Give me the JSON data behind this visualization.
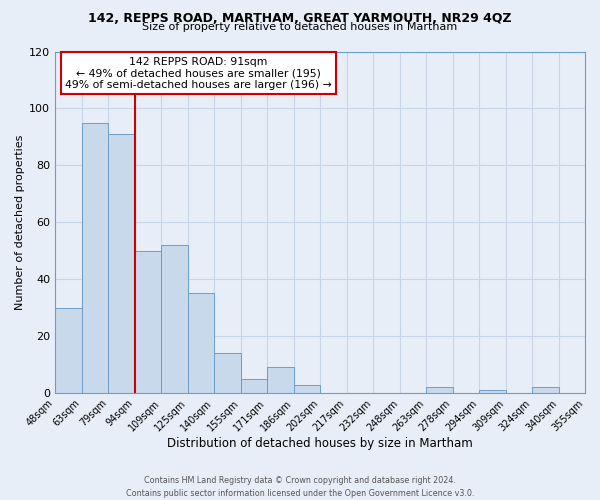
{
  "title": "142, REPPS ROAD, MARTHAM, GREAT YARMOUTH, NR29 4QZ",
  "subtitle": "Size of property relative to detached houses in Martham",
  "xlabel": "Distribution of detached houses by size in Martham",
  "ylabel": "Number of detached properties",
  "footer1": "Contains HM Land Registry data © Crown copyright and database right 2024.",
  "footer2": "Contains public sector information licensed under the Open Government Licence v3.0.",
  "bin_labels": [
    "48sqm",
    "63sqm",
    "79sqm",
    "94sqm",
    "109sqm",
    "125sqm",
    "140sqm",
    "155sqm",
    "171sqm",
    "186sqm",
    "202sqm",
    "217sqm",
    "232sqm",
    "248sqm",
    "263sqm",
    "278sqm",
    "294sqm",
    "309sqm",
    "324sqm",
    "340sqm",
    "355sqm"
  ],
  "bar_heights": [
    30,
    95,
    91,
    50,
    52,
    35,
    14,
    5,
    9,
    3,
    0,
    0,
    0,
    0,
    2,
    0,
    1,
    0,
    2,
    0
  ],
  "bar_color": "#c9d9ec",
  "bar_edge_color": "#6b9ec8",
  "highlight_label": "142 REPPS ROAD: 91sqm",
  "annotation_line1": "← 49% of detached houses are smaller (195)",
  "annotation_line2": "49% of semi-detached houses are larger (196) →",
  "annotation_box_color": "#ffffff",
  "annotation_box_edge": "#cc0000",
  "red_line_color": "#cc0000",
  "red_line_bin_index": 3,
  "ylim": [
    0,
    120
  ],
  "yticks": [
    0,
    20,
    40,
    60,
    80,
    100,
    120
  ],
  "grid_color": "#c8d4e8",
  "bg_color": "#e8eef8",
  "title_fontsize": 9,
  "subtitle_fontsize": 8
}
